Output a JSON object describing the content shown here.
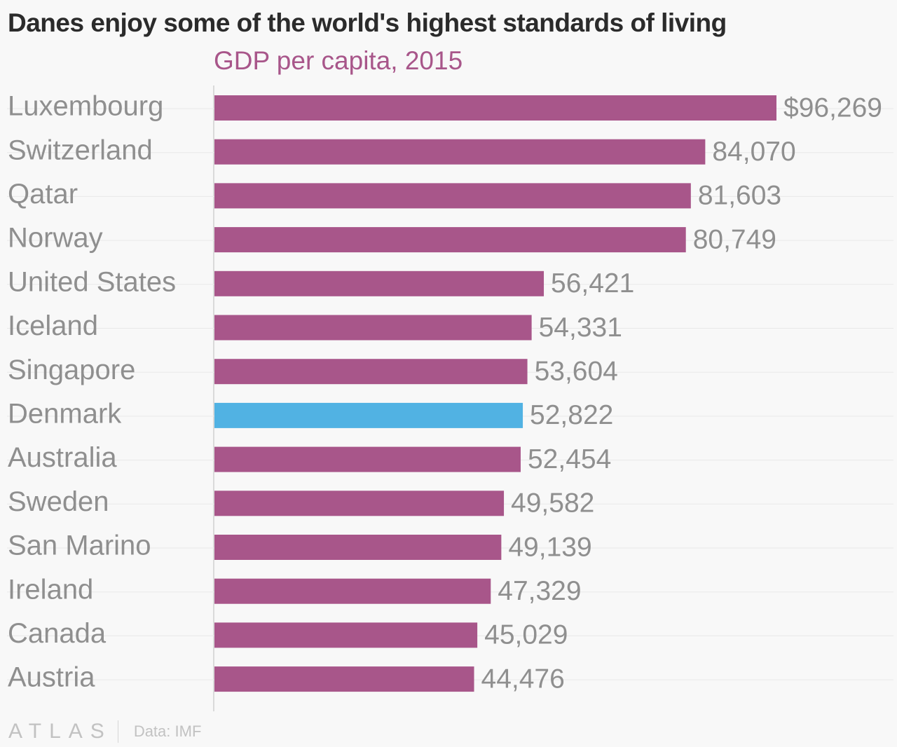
{
  "chart_data": {
    "type": "bar",
    "orientation": "horizontal",
    "title": "Danes enjoy some of the world's highest standards of living",
    "subtitle": "GDP per capita, 2015",
    "categories": [
      "Luxembourg",
      "Switzerland",
      "Qatar",
      "Norway",
      "United States",
      "Iceland",
      "Singapore",
      "Denmark",
      "Australia",
      "Sweden",
      "San Marino",
      "Ireland",
      "Canada",
      "Austria"
    ],
    "values": [
      96269,
      84070,
      81603,
      80749,
      56421,
      54331,
      53604,
      52822,
      52454,
      49582,
      49139,
      47329,
      45029,
      44476
    ],
    "value_labels": [
      "$96,269",
      "84,070",
      "81,603",
      "80,749",
      "56,421",
      "54,331",
      "53,604",
      "52,822",
      "52,454",
      "49,582",
      "49,139",
      "47,329",
      "45,029",
      "44,476"
    ],
    "highlight": "Denmark",
    "xlim": [
      0,
      96269
    ],
    "grid": true
  },
  "colors": {
    "bar": "#a8568a",
    "highlight_bar": "#51b2e3",
    "label": "#8f8f8f",
    "value_label": "#8f8f8f",
    "gridline": "#e9e9e9",
    "axis": "#cfcfcf"
  },
  "footer": {
    "brand": "ATLAS",
    "source": "Data: IMF"
  }
}
